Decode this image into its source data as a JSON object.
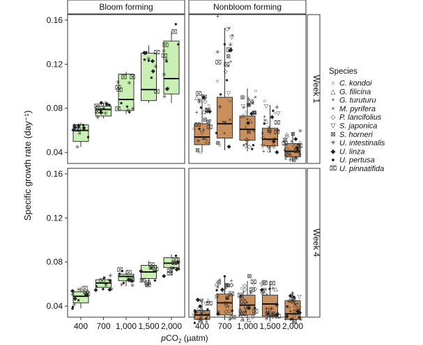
{
  "chart_data": {
    "type": "boxplot",
    "ylabel": "Specific growth rate (day⁻¹)",
    "xlabel_prefix": "p",
    "xlabel_main": "CO",
    "xlabel_sub": "2",
    "xlabel_unit": " (µatm)",
    "ylim": [
      0.03,
      0.165
    ],
    "yticks": [
      0.04,
      0.08,
      0.12,
      0.16
    ],
    "ytick_labels": [
      "0.04",
      "0.08",
      "0.12",
      "0.16"
    ],
    "x_categories": [
      "400",
      "700",
      "1,000",
      "1,500",
      "2,000"
    ],
    "column_panels": [
      "Bloom  forming",
      "Nonbloom forming"
    ],
    "row_panels": [
      "Week 1",
      "Week 4"
    ],
    "colors": {
      "bloom": "#c9efb4",
      "nonbloom": "#c98f5c",
      "edge": "#222222"
    },
    "legend": {
      "title": "Species",
      "entries": [
        {
          "marker": "○",
          "label": "C. kondoi"
        },
        {
          "marker": "△",
          "label": "G. filicina"
        },
        {
          "marker": "+",
          "label": "G. turuturu"
        },
        {
          "marker": "×",
          "label": "M. pyrifera"
        },
        {
          "marker": "◇",
          "label": "P. lancifolius"
        },
        {
          "marker": "▽",
          "label": "S. japonica"
        },
        {
          "marker": "⊠",
          "label": "S. horneri"
        },
        {
          "marker": "✳",
          "label": "U. intestinalis"
        },
        {
          "marker": "◆",
          "label": "U. linza"
        },
        {
          "marker": "●",
          "label": "U. pertusa"
        },
        {
          "marker": "⌧",
          "label": "U. pinnatifida"
        }
      ]
    },
    "boxes": {
      "week1_bloom": [
        {
          "q1": 0.05,
          "median": 0.06,
          "q3": 0.065,
          "whisker_low": 0.045,
          "whisker_high": 0.067
        },
        {
          "q1": 0.073,
          "median": 0.079,
          "q3": 0.082,
          "whisker_low": 0.071,
          "whisker_high": 0.085
        },
        {
          "q1": 0.078,
          "median": 0.088,
          "q3": 0.111,
          "whisker_low": 0.075,
          "whisker_high": 0.113
        },
        {
          "q1": 0.087,
          "median": 0.097,
          "q3": 0.13,
          "whisker_low": 0.085,
          "whisker_high": 0.137
        },
        {
          "q1": 0.093,
          "median": 0.107,
          "q3": 0.141,
          "whisker_low": 0.085,
          "whisker_high": 0.15
        }
      ],
      "week1_nonbloom": [
        {
          "q1": 0.047,
          "median": 0.054,
          "q3": 0.066,
          "whisker_low": 0.04,
          "whisker_high": 0.093
        },
        {
          "q1": 0.053,
          "median": 0.066,
          "q3": 0.09,
          "whisker_low": 0.042,
          "whisker_high": 0.153
        },
        {
          "q1": 0.051,
          "median": 0.061,
          "q3": 0.073,
          "whisker_low": 0.041,
          "whisker_high": 0.098
        },
        {
          "q1": 0.046,
          "median": 0.052,
          "q3": 0.062,
          "whisker_low": 0.04,
          "whisker_high": 0.083
        },
        {
          "q1": 0.036,
          "median": 0.041,
          "q3": 0.048,
          "whisker_low": 0.032,
          "whisker_high": 0.058
        }
      ],
      "week4_bloom": [
        {
          "q1": 0.043,
          "median": 0.049,
          "q3": 0.053,
          "whisker_low": 0.038,
          "whisker_high": 0.057
        },
        {
          "q1": 0.057,
          "median": 0.061,
          "q3": 0.064,
          "whisker_low": 0.055,
          "whisker_high": 0.067
        },
        {
          "q1": 0.063,
          "median": 0.067,
          "q3": 0.069,
          "whisker_low": 0.058,
          "whisker_high": 0.072
        },
        {
          "q1": 0.065,
          "median": 0.071,
          "q3": 0.077,
          "whisker_low": 0.059,
          "whisker_high": 0.081
        },
        {
          "q1": 0.075,
          "median": 0.079,
          "q3": 0.084,
          "whisker_low": 0.068,
          "whisker_high": 0.087
        }
      ],
      "week4_nonbloom": [
        {
          "q1": 0.028,
          "median": 0.032,
          "q3": 0.036,
          "whisker_low": 0.024,
          "whisker_high": 0.046
        },
        {
          "q1": 0.032,
          "median": 0.043,
          "q3": 0.051,
          "whisker_low": 0.028,
          "whisker_high": 0.067
        },
        {
          "q1": 0.032,
          "median": 0.041,
          "q3": 0.05,
          "whisker_low": 0.027,
          "whisker_high": 0.063
        },
        {
          "q1": 0.031,
          "median": 0.042,
          "q3": 0.05,
          "whisker_low": 0.026,
          "whisker_high": 0.062
        },
        {
          "q1": 0.028,
          "median": 0.033,
          "q3": 0.045,
          "whisker_low": 0.024,
          "whisker_high": 0.053
        }
      ]
    }
  }
}
